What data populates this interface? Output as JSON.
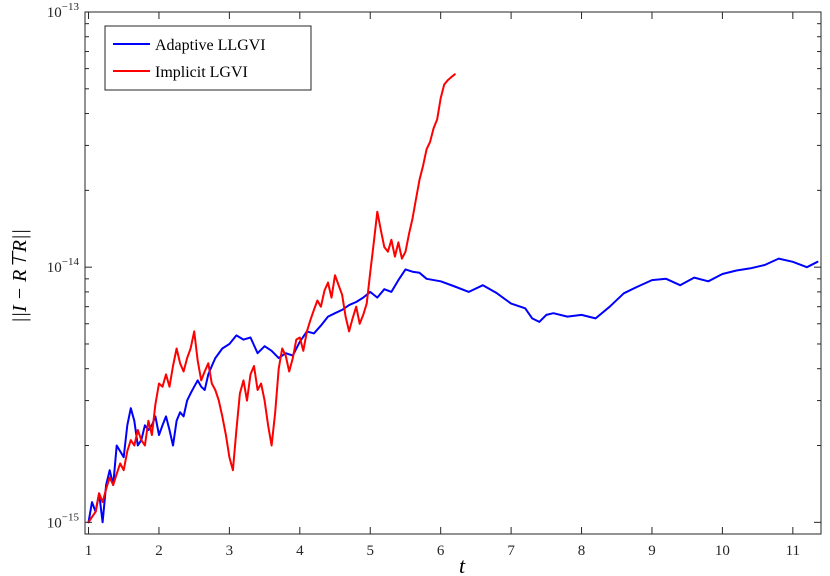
{
  "chart_data": {
    "type": "line",
    "xlabel": "t",
    "ylabel": "||I − R⊤R||",
    "xscale": "linear",
    "yscale": "log",
    "xlim": [
      0.95,
      11.4
    ],
    "ylim": [
      9e-16,
      1e-13
    ],
    "xticks": [
      1,
      2,
      3,
      4,
      5,
      6,
      7,
      8,
      9,
      10,
      11
    ],
    "yticks": [
      {
        "value": 1e-15,
        "base": "10",
        "exp": "-15"
      },
      {
        "value": 1e-14,
        "base": "10",
        "exp": "-14"
      },
      {
        "value": 1e-13,
        "base": "10",
        "exp": "-13"
      }
    ],
    "grid": false,
    "legend_position": "top-left",
    "series": [
      {
        "name": "Adaptive LLGVI",
        "color": "#0000ff",
        "x": [
          1.0,
          1.05,
          1.1,
          1.15,
          1.2,
          1.25,
          1.3,
          1.35,
          1.4,
          1.5,
          1.55,
          1.6,
          1.65,
          1.7,
          1.75,
          1.8,
          1.85,
          1.9,
          1.95,
          2.0,
          2.05,
          2.1,
          2.15,
          2.2,
          2.25,
          2.3,
          2.35,
          2.4,
          2.45,
          2.5,
          2.55,
          2.6,
          2.65,
          2.7,
          2.75,
          2.8,
          2.9,
          3.0,
          3.1,
          3.2,
          3.3,
          3.4,
          3.5,
          3.6,
          3.7,
          3.8,
          3.9,
          4.0,
          4.1,
          4.2,
          4.3,
          4.4,
          4.5,
          4.6,
          4.7,
          4.8,
          4.9,
          5.0,
          5.1,
          5.2,
          5.3,
          5.4,
          5.5,
          5.6,
          5.7,
          5.8,
          6.0,
          6.2,
          6.4,
          6.6,
          6.8,
          7.0,
          7.2,
          7.3,
          7.4,
          7.5,
          7.6,
          7.8,
          8.0,
          8.2,
          8.4,
          8.6,
          8.8,
          9.0,
          9.2,
          9.4,
          9.6,
          9.8,
          10.0,
          10.2,
          10.4,
          10.6,
          10.8,
          11.0,
          11.2,
          11.35
        ],
        "values": [
          1e-15,
          1.2e-15,
          1.1e-15,
          1.3e-15,
          1e-15,
          1.4e-15,
          1.6e-15,
          1.4e-15,
          2e-15,
          1.8e-15,
          2.4e-15,
          2.8e-15,
          2.5e-15,
          2e-15,
          2.1e-15,
          2.4e-15,
          2.3e-15,
          2.4e-15,
          2.6e-15,
          2.2e-15,
          2.4e-15,
          2.6e-15,
          2.3e-15,
          2e-15,
          2.5e-15,
          2.7e-15,
          2.6e-15,
          3e-15,
          3.2e-15,
          3.4e-15,
          3.6e-15,
          3.4e-15,
          3.3e-15,
          3.8e-15,
          4.1e-15,
          4.4e-15,
          4.8e-15,
          5e-15,
          5.4e-15,
          5.2e-15,
          5.3e-15,
          4.6e-15,
          4.9e-15,
          4.7e-15,
          4.4e-15,
          4.6e-15,
          4.5e-15,
          5.1e-15,
          5.6e-15,
          5.5e-15,
          5.9e-15,
          6.4e-15,
          6.6e-15,
          6.8e-15,
          7.1e-15,
          7.3e-15,
          7.6e-15,
          8e-15,
          7.6e-15,
          8.2e-15,
          8e-15,
          8.9e-15,
          9.8e-15,
          9.6e-15,
          9.5e-15,
          9e-15,
          8.8e-15,
          8.4e-15,
          8e-15,
          8.5e-15,
          7.9e-15,
          7.2e-15,
          6.9e-15,
          6.3e-15,
          6.1e-15,
          6.5e-15,
          6.6e-15,
          6.4e-15,
          6.5e-15,
          6.3e-15,
          7e-15,
          7.9e-15,
          8.4e-15,
          8.9e-15,
          9e-15,
          8.5e-15,
          9.1e-15,
          8.8e-15,
          9.4e-15,
          9.7e-15,
          9.9e-15,
          1.02e-14,
          1.08e-14,
          1.05e-14,
          1e-14,
          1.05e-14
        ]
      },
      {
        "name": "Implicit LGVI",
        "color": "#ff0000",
        "x": [
          1.0,
          1.05,
          1.1,
          1.15,
          1.2,
          1.25,
          1.3,
          1.35,
          1.4,
          1.45,
          1.5,
          1.55,
          1.6,
          1.65,
          1.7,
          1.75,
          1.8,
          1.85,
          1.9,
          1.95,
          2.0,
          2.05,
          2.1,
          2.15,
          2.2,
          2.25,
          2.3,
          2.35,
          2.4,
          2.45,
          2.5,
          2.55,
          2.6,
          2.65,
          2.7,
          2.75,
          2.8,
          2.85,
          2.9,
          2.95,
          3.0,
          3.05,
          3.1,
          3.15,
          3.2,
          3.25,
          3.3,
          3.35,
          3.4,
          3.45,
          3.5,
          3.55,
          3.6,
          3.65,
          3.7,
          3.75,
          3.8,
          3.85,
          3.9,
          3.95,
          4.0,
          4.05,
          4.1,
          4.15,
          4.2,
          4.25,
          4.3,
          4.35,
          4.4,
          4.45,
          4.5,
          4.55,
          4.6,
          4.65,
          4.7,
          4.75,
          4.8,
          4.85,
          4.9,
          4.95,
          5.0,
          5.05,
          5.1,
          5.15,
          5.2,
          5.25,
          5.3,
          5.35,
          5.4,
          5.45,
          5.5,
          5.55,
          5.6,
          5.65,
          5.7,
          5.75,
          5.8,
          5.85,
          5.9,
          5.95,
          6.0,
          6.05,
          6.1,
          6.15,
          6.2
        ],
        "values": [
          1e-15,
          1.05e-15,
          1.1e-15,
          1.3e-15,
          1.2e-15,
          1.35e-15,
          1.5e-15,
          1.4e-15,
          1.55e-15,
          1.7e-15,
          1.6e-15,
          1.9e-15,
          2.1e-15,
          2e-15,
          2.3e-15,
          2.1e-15,
          2e-15,
          2.5e-15,
          2.2e-15,
          2.9e-15,
          3.5e-15,
          3.4e-15,
          3.8e-15,
          3.4e-15,
          4.1e-15,
          4.8e-15,
          4.2e-15,
          3.9e-15,
          4.4e-15,
          4.8e-15,
          5.6e-15,
          4.3e-15,
          3.6e-15,
          3.9e-15,
          4.2e-15,
          3.5e-15,
          3.3e-15,
          3e-15,
          2.6e-15,
          2.2e-15,
          1.8e-15,
          1.6e-15,
          2.3e-15,
          3.2e-15,
          3.6e-15,
          3e-15,
          3.8e-15,
          4.1e-15,
          3.3e-15,
          3.5e-15,
          3e-15,
          2.4e-15,
          2e-15,
          2.7e-15,
          4e-15,
          4.8e-15,
          4.5e-15,
          3.9e-15,
          4.4e-15,
          5.2e-15,
          5.3e-15,
          4.7e-15,
          5.6e-15,
          6.2e-15,
          6.8e-15,
          7.4e-15,
          7e-15,
          8.1e-15,
          8.7e-15,
          7.6e-15,
          9.3e-15,
          8.5e-15,
          7.8e-15,
          6.4e-15,
          5.6e-15,
          6.3e-15,
          7e-15,
          6e-15,
          6.5e-15,
          7.2e-15,
          9.5e-15,
          1.25e-14,
          1.65e-14,
          1.4e-14,
          1.2e-14,
          1.15e-14,
          1.28e-14,
          1.1e-14,
          1.25e-14,
          1.08e-14,
          1.15e-14,
          1.35e-14,
          1.55e-14,
          1.85e-14,
          2.2e-14,
          2.5e-14,
          2.9e-14,
          3.1e-14,
          3.5e-14,
          3.8e-14,
          4.6e-14,
          5.2e-14,
          5.4e-14,
          5.55e-14,
          5.7e-14
        ]
      }
    ]
  }
}
